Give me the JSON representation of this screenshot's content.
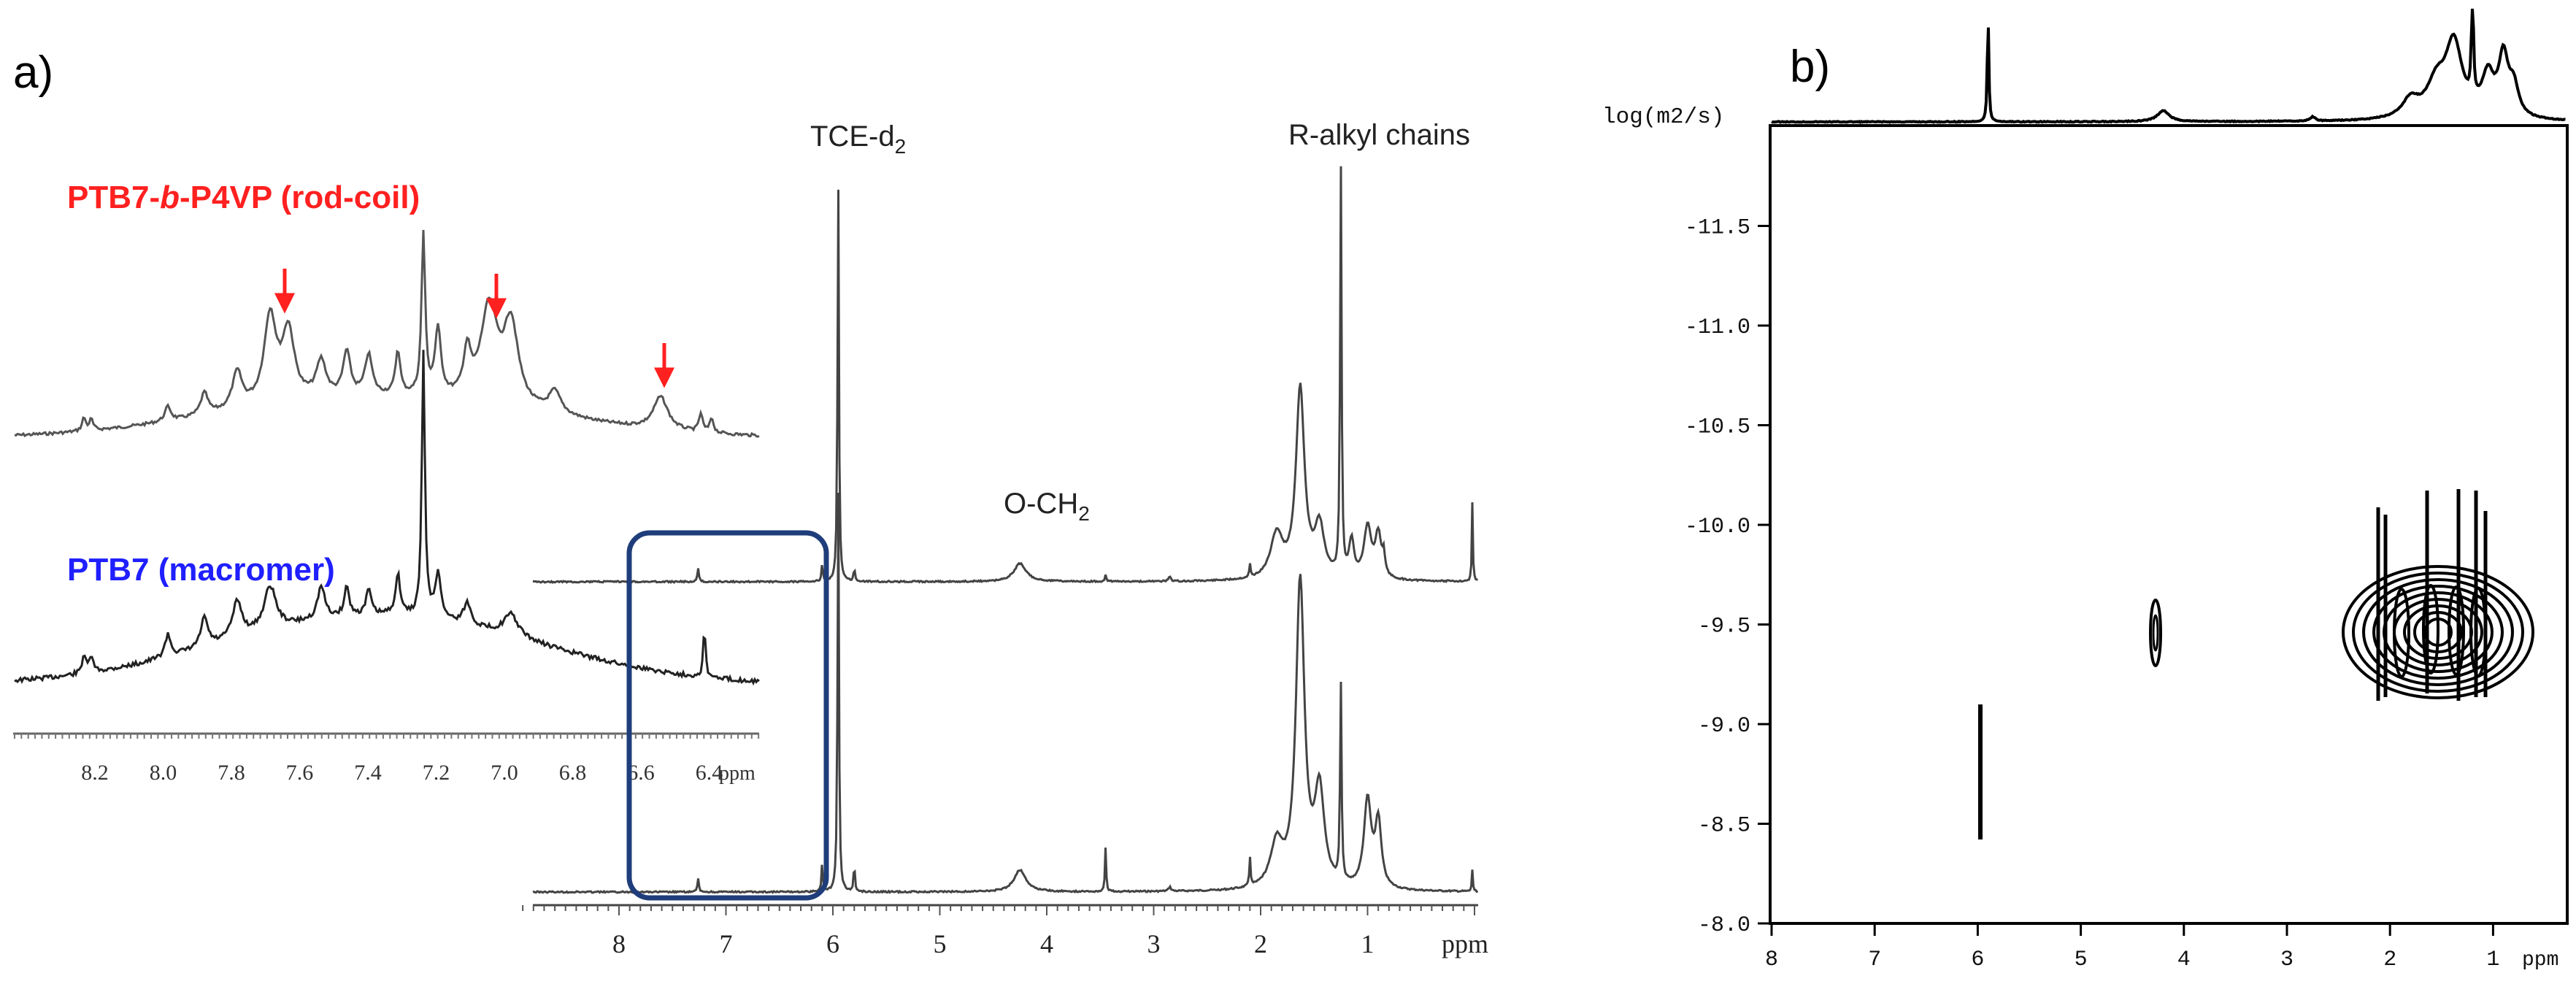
{
  "panel_a": {
    "label": "a)",
    "inset": {
      "rod_coil_label": {
        "prefix": "PTB7-",
        "italic": "b",
        "suffix": "-P4VP (rod-coil)"
      },
      "macromer_label": "PTB7 (macromer)",
      "ticks": [
        "8.2",
        "8.0",
        "7.8",
        "7.6",
        "7.4",
        "7.2",
        "7.0",
        "6.8",
        "6.6",
        "6.4"
      ],
      "unit": "ppm"
    },
    "main": {
      "ticks": [
        "8",
        "7",
        "6",
        "5",
        "4",
        "3",
        "2",
        "1"
      ],
      "unit": "ppm"
    },
    "annotations": {
      "tce": {
        "text": "TCE-d",
        "sub": "2"
      },
      "och2": {
        "text": "O-CH",
        "sub": "2"
      },
      "alkyl": "R-alkyl chains"
    }
  },
  "panel_b": {
    "label": "b)",
    "ylabel": "log(m2/s)",
    "yticks": [
      "-11.5",
      "-11.0",
      "-10.5",
      "-10.0",
      "-9.5",
      "-9.0",
      "-8.5",
      "-8.0"
    ],
    "xticks": [
      "8",
      "7",
      "6",
      "5",
      "4",
      "3",
      "2",
      "1"
    ],
    "xunit": "ppm"
  },
  "colors": {
    "red": "#ff2020",
    "blue": "#1f1fff",
    "box": "#1f3d7a",
    "trace": "#444444",
    "dark": "#000000"
  },
  "chart_data": [
    {
      "type": "line",
      "description_ref": "inset 1H NMR aromatic region",
      "x_range": [
        8.45,
        6.3
      ],
      "series": [
        {
          "name": "PTB7-b-P4VP (rod-coil)",
          "peaks_ppm": [
            7.65,
            7.26,
            7.07,
            6.56
          ],
          "marked_peaks_ppm": [
            7.65,
            7.07,
            6.56
          ]
        },
        {
          "name": "PTB7 (macromer)",
          "peaks_ppm": [
            7.65,
            7.26
          ]
        }
      ]
    },
    {
      "type": "line",
      "description_ref": "full 1H NMR spectra",
      "x_range": [
        9.0,
        0.0
      ],
      "peaks_ppm": {
        "TCE-d2": 5.95,
        "O-CH2": 4.25,
        "R-alkyl chains": [
          1.63,
          1.25,
          0.9
        ]
      }
    },
    {
      "type": "scatter",
      "description_ref": "DOSY map",
      "x_range": [
        8,
        0.3
      ],
      "ylim": [
        -12.0,
        -8.0
      ],
      "signals": [
        {
          "ppm": 5.95,
          "logD": [
            -8.6,
            -9.1
          ]
        },
        {
          "ppm": 4.2,
          "logD": -9.55
        },
        {
          "ppm": [
            0.9,
            1.9
          ],
          "logD": -9.5
        }
      ]
    }
  ]
}
